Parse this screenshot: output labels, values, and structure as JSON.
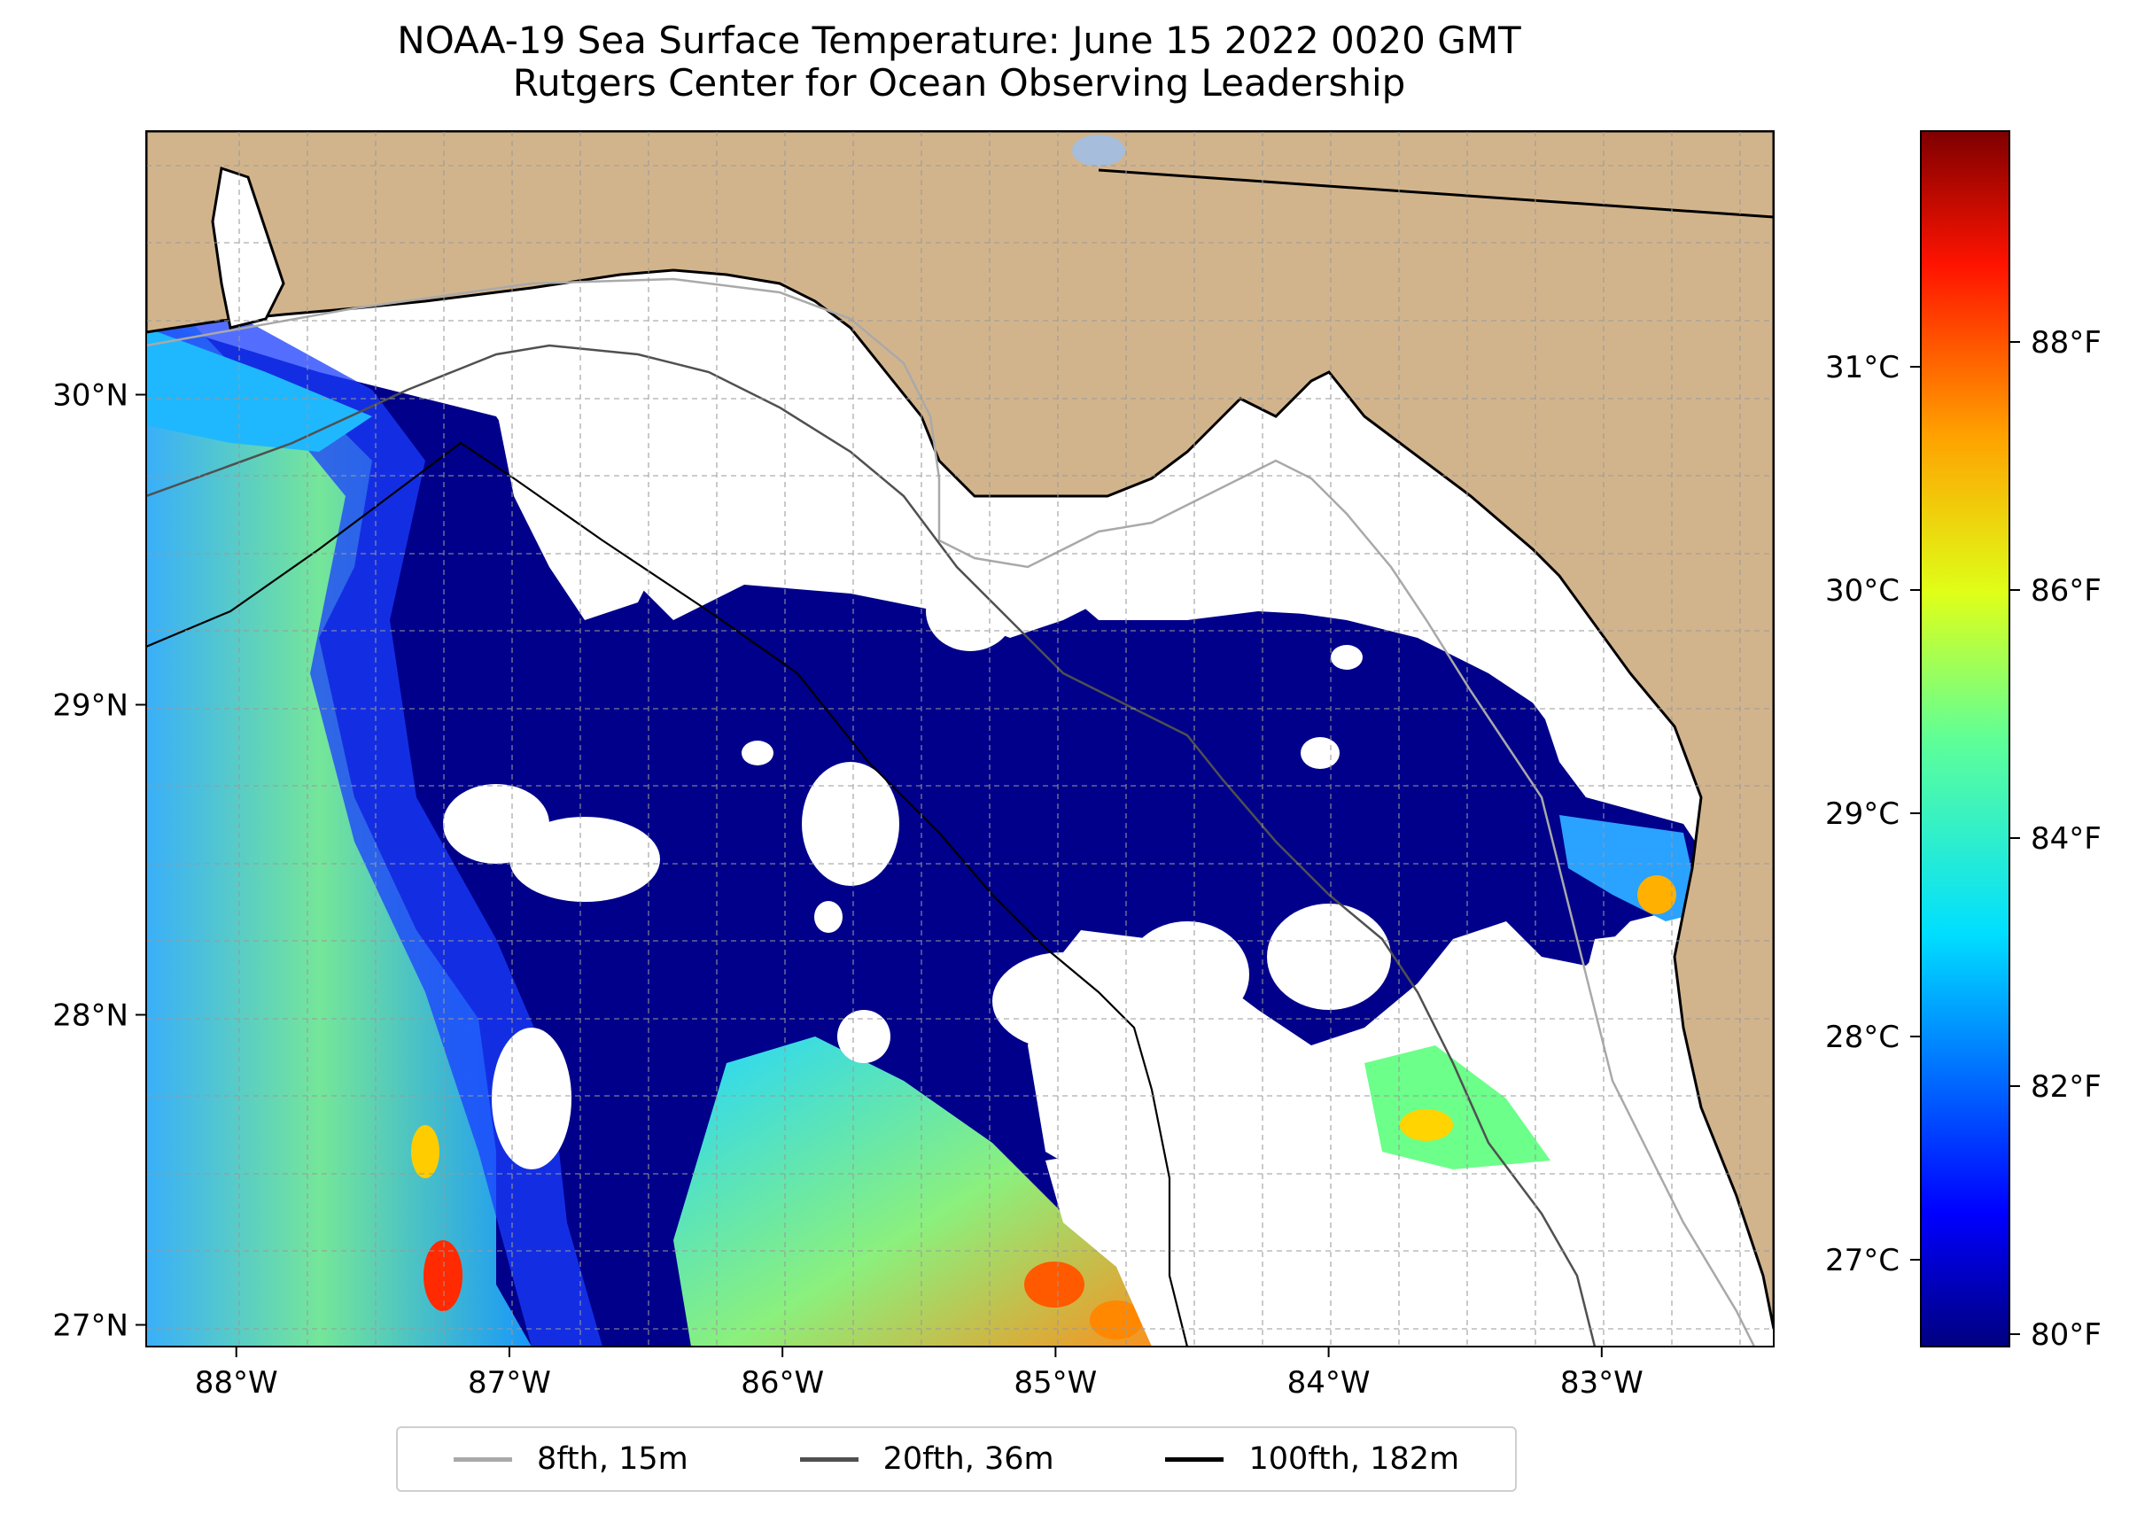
{
  "title": {
    "line1": "NOAA-19 Sea Surface Temperature: June 15 2022 0020 GMT",
    "line2": "Rutgers Center for Ocean Observing Leadership"
  },
  "map": {
    "extent": {
      "lon_min": -88.33,
      "lon_max": -82.37,
      "lat_min": 26.93,
      "lat_max": 30.85
    },
    "x_tick_labels": [
      {
        "lon": -88,
        "label": "88°W"
      },
      {
        "lon": -87,
        "label": "87°W"
      },
      {
        "lon": -86,
        "label": "86°W"
      },
      {
        "lon": -85,
        "label": "85°W"
      },
      {
        "lon": -84,
        "label": "84°W"
      },
      {
        "lon": -83,
        "label": "83°W"
      }
    ],
    "y_tick_labels": [
      {
        "lat": 30,
        "label": "30°N"
      },
      {
        "lat": 29,
        "label": "29°N"
      },
      {
        "lat": 28,
        "label": "28°N"
      },
      {
        "lat": 27,
        "label": "27°N"
      }
    ],
    "gridlines": true,
    "land_color": "#d2b48c",
    "cloud_color": "#ffffff"
  },
  "colorbar": {
    "colormap": "jet",
    "celsius_labels": [
      {
        "value": 31,
        "label": "31°C"
      },
      {
        "value": 30,
        "label": "30°C"
      },
      {
        "value": 29,
        "label": "29°C"
      },
      {
        "value": 28,
        "label": "28°C"
      },
      {
        "value": 27,
        "label": "27°C"
      }
    ],
    "fahrenheit_labels": [
      {
        "value": 88,
        "label": "88°F"
      },
      {
        "value": 86,
        "label": "86°F"
      },
      {
        "value": 84,
        "label": "84°F"
      },
      {
        "value": 82,
        "label": "82°F"
      },
      {
        "value": 80,
        "label": "80°F"
      }
    ],
    "range_f": [
      79.9,
      89.7
    ]
  },
  "legend": {
    "items": [
      {
        "label": "8fth, 15m",
        "color": "#a9a9a9"
      },
      {
        "label": "20fth, 36m",
        "color": "#505050"
      },
      {
        "label": "100fth, 182m",
        "color": "#000000"
      }
    ]
  }
}
